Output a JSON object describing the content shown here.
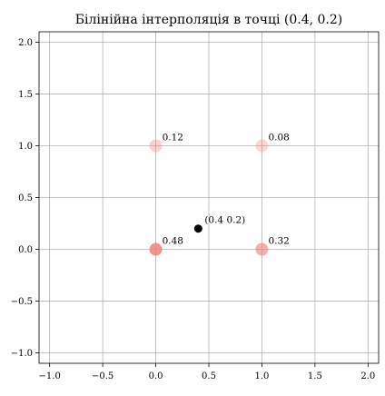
{
  "chart_data": {
    "type": "scatter",
    "title": "Білінійна інтерполяція в точці (0.4, 0.2)",
    "xlabel": "",
    "ylabel": "",
    "xlim": [
      -1.1,
      2.1
    ],
    "ylim": [
      -1.1,
      2.1
    ],
    "grid": true,
    "xticks": [
      {
        "value": -1.0,
        "label": "−1.0"
      },
      {
        "value": -0.5,
        "label": "−0.5"
      },
      {
        "value": 0.0,
        "label": "0.0"
      },
      {
        "value": 0.5,
        "label": "0.5"
      },
      {
        "value": 1.0,
        "label": "1.0"
      },
      {
        "value": 1.5,
        "label": "1.5"
      },
      {
        "value": 2.0,
        "label": "2.0"
      }
    ],
    "yticks": [
      {
        "value": 2.0,
        "label": "2.0"
      },
      {
        "value": 1.5,
        "label": "1.5"
      },
      {
        "value": 1.0,
        "label": "1.0"
      },
      {
        "value": 0.5,
        "label": "0.5"
      },
      {
        "value": 0.0,
        "label": "0.0"
      },
      {
        "value": -0.5,
        "label": "−0.5"
      },
      {
        "value": -1.0,
        "label": "−1.0"
      }
    ],
    "corners": [
      {
        "x": 0,
        "y": 1,
        "weight": 0.12,
        "label": "0.12"
      },
      {
        "x": 1,
        "y": 1,
        "weight": 0.08,
        "label": "0.08"
      },
      {
        "x": 0,
        "y": 0,
        "weight": 0.48,
        "label": "0.48"
      },
      {
        "x": 1,
        "y": 0,
        "weight": 0.32,
        "label": "0.32"
      }
    ],
    "target": {
      "x": 0.4,
      "y": 0.2,
      "label": "(0.4 0.2)"
    },
    "colors": {
      "corner": "#f08080",
      "target": "#000000",
      "grid": "#b0b0b0"
    }
  }
}
